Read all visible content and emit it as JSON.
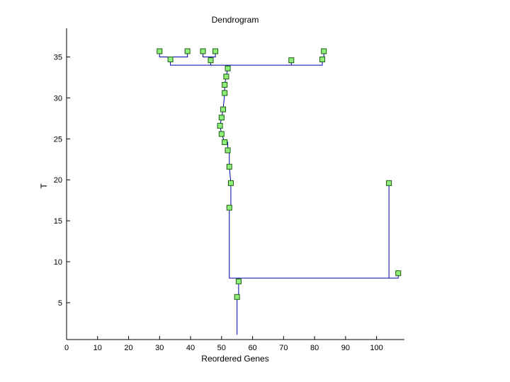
{
  "chart_data": {
    "type": "dendrogram",
    "title": "Dendrogram",
    "xlabel": "Reordered Genes",
    "ylabel": "T",
    "xlim": [
      0,
      109
    ],
    "ylim": [
      0.5,
      38.5
    ],
    "xticks": [
      0,
      10,
      20,
      30,
      40,
      50,
      60,
      70,
      80,
      90,
      100
    ],
    "yticks": [
      5,
      10,
      15,
      20,
      25,
      30,
      35
    ],
    "colors": {
      "line": "#0000a8",
      "marker_fill": "#90ee7a",
      "marker_edge": "#1a5c10",
      "axis": "#000000"
    },
    "nodes": [
      {
        "x": 30,
        "y": 35.7
      },
      {
        "x": 39,
        "y": 35.7
      },
      {
        "x": 44,
        "y": 35.7
      },
      {
        "x": 48,
        "y": 35.7
      },
      {
        "x": 83,
        "y": 35.7
      },
      {
        "x": 33.5,
        "y": 34.7
      },
      {
        "x": 46.5,
        "y": 34.6
      },
      {
        "x": 72.5,
        "y": 34.6
      },
      {
        "x": 82.5,
        "y": 34.7
      },
      {
        "x": 52,
        "y": 33.6
      },
      {
        "x": 51.5,
        "y": 32.6
      },
      {
        "x": 51,
        "y": 31.6
      },
      {
        "x": 51,
        "y": 30.6
      },
      {
        "x": 50.5,
        "y": 28.6
      },
      {
        "x": 50,
        "y": 27.6
      },
      {
        "x": 49.5,
        "y": 26.6
      },
      {
        "x": 50,
        "y": 25.6
      },
      {
        "x": 51,
        "y": 24.6
      },
      {
        "x": 52,
        "y": 23.6
      },
      {
        "x": 52.5,
        "y": 21.6
      },
      {
        "x": 53,
        "y": 19.6
      },
      {
        "x": 52.5,
        "y": 16.6
      },
      {
        "x": 104,
        "y": 19.6
      },
      {
        "x": 107,
        "y": 8.6
      },
      {
        "x": 55.5,
        "y": 7.6
      },
      {
        "x": 55,
        "y": 5.7
      }
    ],
    "links": [
      {
        "x": [
          55,
          55
        ],
        "y": [
          1.1,
          5.7
        ]
      },
      {
        "x": [
          55,
          55.5,
          55.5
        ],
        "y": [
          5.7,
          5.7,
          7.6
        ]
      },
      {
        "x": [
          55.5,
          55.5
        ],
        "y": [
          7.6,
          8.0
        ]
      },
      {
        "x": [
          52.5,
          52.5,
          107,
          107
        ],
        "y": [
          16.6,
          8.0,
          8.0,
          8.6
        ]
      },
      {
        "x": [
          104,
          104
        ],
        "y": [
          19.6,
          8.0
        ]
      },
      {
        "x": [
          52.5,
          53,
          53,
          52.5,
          52.5,
          52,
          52,
          51,
          50,
          49.5,
          50,
          50.5,
          51,
          51,
          51.5,
          52,
          52
        ],
        "y": [
          16.6,
          16.6,
          19.6,
          21.6,
          23.6,
          23.6,
          24.6,
          24.6,
          25.6,
          26.6,
          27.6,
          28.6,
          30.6,
          31.6,
          32.6,
          33.6,
          34.0
        ]
      },
      {
        "x": [
          33.5,
          33.5,
          82.5,
          82.5
        ],
        "y": [
          34.7,
          34.0,
          34.0,
          34.7
        ]
      },
      {
        "x": [
          46.5,
          46.5
        ],
        "y": [
          34.6,
          34.0
        ]
      },
      {
        "x": [
          72.5,
          72.5
        ],
        "y": [
          34.6,
          34.0
        ]
      },
      {
        "x": [
          30,
          30,
          39,
          39
        ],
        "y": [
          35.7,
          35.0,
          35.0,
          35.7
        ]
      },
      {
        "x": [
          33.5,
          33.5
        ],
        "y": [
          35.0,
          34.7
        ]
      },
      {
        "x": [
          44,
          44,
          48,
          48
        ],
        "y": [
          35.7,
          35.0,
          35.0,
          35.7
        ]
      },
      {
        "x": [
          46.5,
          46.5
        ],
        "y": [
          35.0,
          34.6
        ]
      },
      {
        "x": [
          83,
          83,
          82.5
        ],
        "y": [
          35.7,
          35.0,
          35.0
        ]
      },
      {
        "x": [
          82.5,
          82.5
        ],
        "y": [
          35.0,
          34.7
        ]
      }
    ]
  }
}
